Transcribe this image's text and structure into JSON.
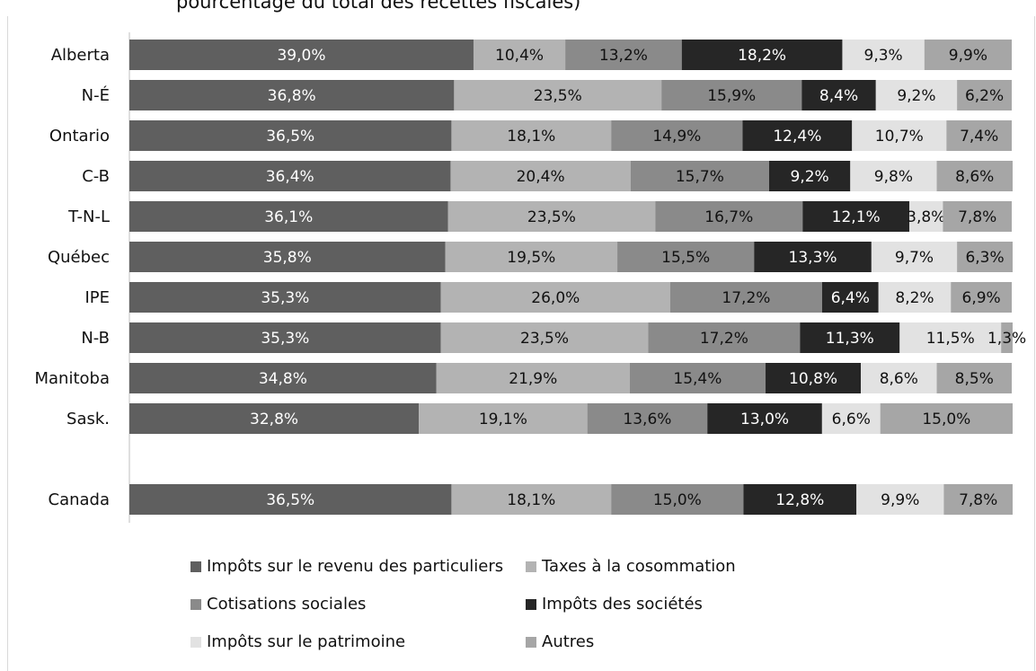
{
  "title_fragment": "pourcentage du total des recettes fiscales)",
  "colors": {
    "income": "#5f5f5f",
    "consumption": "#b3b3b3",
    "social": "#8a8a8a",
    "corporate": "#262626",
    "wealth": "#e2e2e2",
    "other": "#a6a6a6"
  },
  "chart_data": {
    "type": "bar",
    "orientation": "horizontal",
    "stacked": true,
    "xlim": [
      0,
      100
    ],
    "categories": [
      "Alberta",
      "N-É",
      "Ontario",
      "C-B",
      "T-N-L",
      "Québec",
      "IPE",
      "N-B",
      "Manitoba",
      "Sask.",
      "Canada"
    ],
    "series": [
      {
        "name": "Impôts sur le revenu des particuliers",
        "color_key": "income",
        "values": [
          39.0,
          36.8,
          36.5,
          36.4,
          36.1,
          35.8,
          35.3,
          35.3,
          34.8,
          32.8,
          36.5
        ],
        "labels": [
          "39,0%",
          "36,8%",
          "36,5%",
          "36,4%",
          "36,1%",
          "35,8%",
          "35,3%",
          "35,3%",
          "34,8%",
          "32,8%",
          "36,5%"
        ]
      },
      {
        "name": "Taxes à la cosommation",
        "color_key": "consumption",
        "values": [
          10.4,
          23.5,
          18.1,
          20.4,
          23.5,
          19.5,
          26.0,
          23.5,
          21.9,
          19.1,
          18.1
        ],
        "labels": [
          "10,4%",
          "23,5%",
          "18,1%",
          "20,4%",
          "23,5%",
          "19,5%",
          "26,0%",
          "23,5%",
          "21,9%",
          "19,1%",
          "18,1%"
        ]
      },
      {
        "name": "Cotisations sociales",
        "color_key": "social",
        "values": [
          13.2,
          15.9,
          14.9,
          15.7,
          16.7,
          15.5,
          17.2,
          17.2,
          15.4,
          13.6,
          15.0
        ],
        "labels": [
          "13,2%",
          "15,9%",
          "14,9%",
          "15,7%",
          "16,7%",
          "15,5%",
          "17,2%",
          "17,2%",
          "15,4%",
          "13,6%",
          "15,0%"
        ]
      },
      {
        "name": "Impôts des sociétés",
        "color_key": "corporate",
        "values": [
          18.2,
          8.4,
          12.4,
          9.2,
          12.1,
          13.3,
          6.4,
          11.3,
          10.8,
          13.0,
          12.8
        ],
        "labels": [
          "18,2%",
          "8,4%",
          "12,4%",
          "9,2%",
          "12,1%",
          "13,3%",
          "6,4%",
          "11,3%",
          "10,8%",
          "13,0%",
          "12,8%"
        ]
      },
      {
        "name": "Impôts sur le patrimoine",
        "color_key": "wealth",
        "values": [
          9.3,
          9.2,
          10.7,
          9.8,
          3.8,
          9.7,
          8.2,
          11.5,
          8.6,
          6.6,
          9.9
        ],
        "labels": [
          "9,3%",
          "9,2%",
          "10,7%",
          "9,8%",
          "3,8%",
          "9,7%",
          "8,2%",
          "11,5%",
          "8,6%",
          "6,6%",
          "9,9%"
        ]
      },
      {
        "name": "Autres",
        "color_key": "other",
        "values": [
          9.9,
          6.2,
          7.4,
          8.6,
          7.8,
          6.3,
          6.9,
          1.3,
          8.5,
          15.0,
          7.8
        ],
        "labels": [
          "9,9%",
          "6,2%",
          "7,4%",
          "8,6%",
          "7,8%",
          "6,3%",
          "6,9%",
          "1,3%",
          "8,5%",
          "15,0%",
          "7,8%"
        ]
      }
    ]
  }
}
